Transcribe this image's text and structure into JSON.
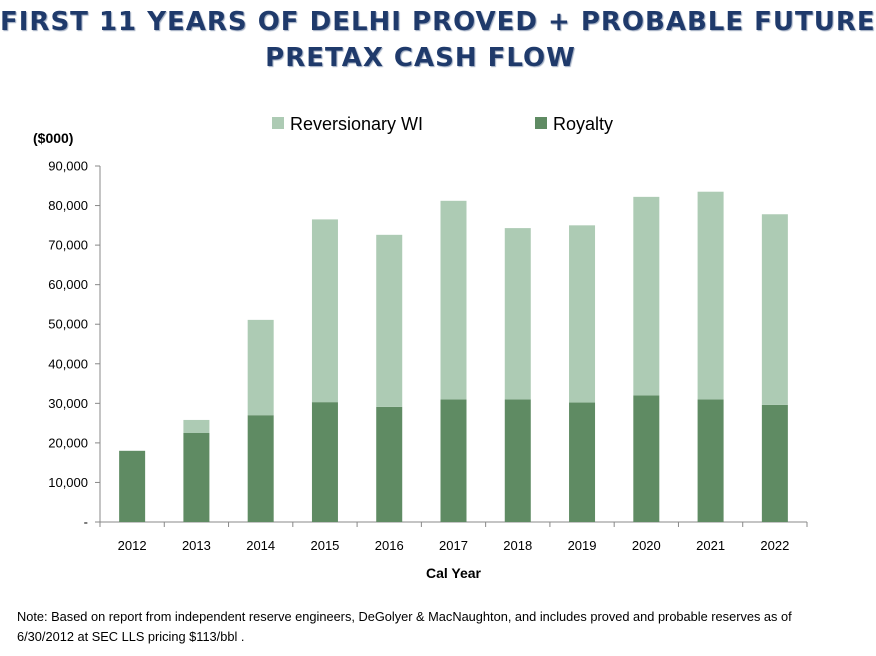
{
  "title_lines": [
    "FIRST 11 YEARS OF DELHI PROVED + PROBABLE FUTURE",
    "PRETAX CASH FLOW"
  ],
  "note": "Note:  Based on report from independent reserve engineers, DeGolyer & MacNaughton, and includes proved and probable reserves  as of 6/30/2012 at SEC LLS pricing $113/bbl .",
  "colors": {
    "royalty": "#5f8b63",
    "reversionary": "#adcbb4",
    "axis": "#888888",
    "title": "#1f3a6b"
  },
  "chart_data": {
    "type": "bar",
    "stacked": true,
    "title": "",
    "xlabel": "Cal Year",
    "ylabel": "($000)",
    "ylim": [
      0,
      90000
    ],
    "yticks": [
      0,
      10000,
      20000,
      30000,
      40000,
      50000,
      60000,
      70000,
      80000,
      90000
    ],
    "ytick_labels": [
      "-",
      "10,000",
      "20,000",
      "30,000",
      "40,000",
      "50,000",
      "60,000",
      "70,000",
      "80,000",
      "90,000"
    ],
    "categories": [
      "2012",
      "2013",
      "2014",
      "2015",
      "2016",
      "2017",
      "2018",
      "2019",
      "2020",
      "2021",
      "2022"
    ],
    "legend_position": "top",
    "grid": true,
    "series": [
      {
        "name": "Royalty",
        "color": "#5f8b63",
        "values": [
          18000,
          22500,
          27000,
          30300,
          29100,
          31000,
          31000,
          30200,
          32000,
          31000,
          29600
        ]
      },
      {
        "name": "Reversionary WI",
        "color": "#adcbb4",
        "values": [
          0,
          3300,
          24100,
          46200,
          43500,
          50200,
          43300,
          44800,
          50200,
          52500,
          48200
        ]
      }
    ],
    "legend_order": [
      "Reversionary WI",
      "Royalty"
    ]
  }
}
